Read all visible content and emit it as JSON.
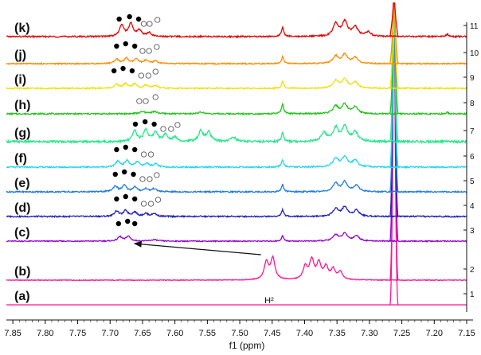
{
  "chart_data": {
    "type": "line",
    "xlabel": "f1 (ppm)",
    "x_reversed": true,
    "xlim": [
      7.86,
      7.15
    ],
    "x_ticks": [
      "7.85",
      "7.80",
      "7.75",
      "7.70",
      "7.65",
      "7.60",
      "7.55",
      "7.50",
      "7.45",
      "7.40",
      "7.35",
      "7.30",
      "7.25",
      "7.20",
      "7.15"
    ],
    "right_axis_ticks": [
      "1",
      "2",
      "3",
      "4",
      "5",
      "6",
      "7",
      "8",
      "9",
      "10",
      "11"
    ],
    "series": [
      {
        "name": "(a)",
        "index": "1",
        "color": "#ff1493",
        "peaks": [
          [
            7.262,
            1.0,
            0.004
          ]
        ],
        "baseline_noise": 0.02
      },
      {
        "name": "(b)",
        "index": "2",
        "color": "#ff1493",
        "peaks": [
          [
            7.262,
            1.0,
            0.004
          ],
          [
            7.459,
            0.45,
            0.004
          ],
          [
            7.449,
            0.55,
            0.004
          ],
          [
            7.399,
            0.33,
            0.004
          ],
          [
            7.389,
            0.5,
            0.004
          ],
          [
            7.378,
            0.42,
            0.004
          ],
          [
            7.367,
            0.32,
            0.004
          ],
          [
            7.356,
            0.26,
            0.004
          ],
          [
            7.345,
            0.2,
            0.004
          ]
        ],
        "baseline_noise": 0.02
      },
      {
        "name": "(c)",
        "index": "3",
        "color": "#9400d3",
        "peaks": [
          [
            7.262,
            1.0,
            0.005
          ],
          [
            7.685,
            0.25,
            0.004
          ],
          [
            7.672,
            0.28,
            0.004
          ],
          [
            7.632,
            0.08,
            0.006
          ],
          [
            7.352,
            0.35,
            0.005
          ],
          [
            7.338,
            0.42,
            0.005
          ],
          [
            7.32,
            0.3,
            0.005
          ],
          [
            7.434,
            0.3,
            0.002
          ]
        ],
        "baseline_noise": 0.06
      },
      {
        "name": "(d)",
        "index": "4",
        "color": "#1f1fbf",
        "peaks": [
          [
            7.262,
            1.0,
            0.005
          ],
          [
            7.69,
            0.28,
            0.004
          ],
          [
            7.676,
            0.3,
            0.004
          ],
          [
            7.662,
            0.22,
            0.004
          ],
          [
            7.645,
            0.15,
            0.004
          ],
          [
            7.632,
            0.15,
            0.004
          ],
          [
            7.352,
            0.4,
            0.005
          ],
          [
            7.338,
            0.48,
            0.005
          ],
          [
            7.32,
            0.32,
            0.005
          ],
          [
            7.434,
            0.35,
            0.002
          ]
        ],
        "baseline_noise": 0.07
      },
      {
        "name": "(e)",
        "index": "5",
        "color": "#1e7be0",
        "peaks": [
          [
            7.262,
            1.0,
            0.005
          ],
          [
            7.692,
            0.3,
            0.004
          ],
          [
            7.678,
            0.32,
            0.004
          ],
          [
            7.662,
            0.25,
            0.004
          ],
          [
            7.645,
            0.16,
            0.004
          ],
          [
            7.632,
            0.16,
            0.004
          ],
          [
            7.352,
            0.42,
            0.005
          ],
          [
            7.338,
            0.5,
            0.005
          ],
          [
            7.32,
            0.32,
            0.005
          ],
          [
            7.434,
            0.38,
            0.002
          ]
        ],
        "baseline_noise": 0.07
      },
      {
        "name": "(f)",
        "index": "6",
        "color": "#1fd6e8",
        "peaks": [
          [
            7.262,
            1.0,
            0.005
          ],
          [
            7.688,
            0.3,
            0.004
          ],
          [
            7.674,
            0.33,
            0.004
          ],
          [
            7.658,
            0.26,
            0.004
          ],
          [
            7.643,
            0.18,
            0.004
          ],
          [
            7.63,
            0.16,
            0.004
          ],
          [
            7.352,
            0.45,
            0.005
          ],
          [
            7.338,
            0.52,
            0.005
          ],
          [
            7.322,
            0.35,
            0.005
          ],
          [
            7.434,
            0.4,
            0.002
          ]
        ],
        "baseline_noise": 0.07
      },
      {
        "name": "(g)",
        "index": "7",
        "color": "#22e888",
        "peaks": [
          [
            7.262,
            1.0,
            0.005
          ],
          [
            7.662,
            0.45,
            0.004
          ],
          [
            7.645,
            0.5,
            0.004
          ],
          [
            7.63,
            0.4,
            0.004
          ],
          [
            7.615,
            0.28,
            0.004
          ],
          [
            7.6,
            0.2,
            0.004
          ],
          [
            7.56,
            0.45,
            0.004
          ],
          [
            7.548,
            0.4,
            0.004
          ],
          [
            7.51,
            0.18,
            0.005
          ],
          [
            7.37,
            0.35,
            0.005
          ],
          [
            7.352,
            0.55,
            0.005
          ],
          [
            7.338,
            0.6,
            0.005
          ],
          [
            7.322,
            0.4,
            0.005
          ],
          [
            7.434,
            0.4,
            0.002
          ]
        ],
        "baseline_noise": 0.09
      },
      {
        "name": "(h)",
        "index": "8",
        "color": "#22c41a",
        "peaks": [
          [
            7.262,
            1.0,
            0.005
          ],
          [
            7.65,
            0.1,
            0.006
          ],
          [
            7.632,
            0.12,
            0.006
          ],
          [
            7.56,
            0.08,
            0.006
          ],
          [
            7.352,
            0.42,
            0.005
          ],
          [
            7.338,
            0.52,
            0.005
          ],
          [
            7.322,
            0.38,
            0.005
          ],
          [
            7.434,
            0.55,
            0.002
          ],
          [
            7.18,
            0.08,
            0.002
          ]
        ],
        "baseline_noise": 0.08
      },
      {
        "name": "(i)",
        "index": "9",
        "color": "#f0e000",
        "peaks": [
          [
            7.262,
            1.0,
            0.005
          ],
          [
            7.69,
            0.22,
            0.004
          ],
          [
            7.676,
            0.26,
            0.004
          ],
          [
            7.662,
            0.24,
            0.004
          ],
          [
            7.645,
            0.18,
            0.004
          ],
          [
            7.63,
            0.16,
            0.004
          ],
          [
            7.352,
            0.42,
            0.005
          ],
          [
            7.338,
            0.5,
            0.005
          ],
          [
            7.322,
            0.35,
            0.005
          ],
          [
            7.434,
            0.4,
            0.002
          ]
        ],
        "baseline_noise": 0.07
      },
      {
        "name": "(j)",
        "index": "10",
        "color": "#ff8c00",
        "peaks": [
          [
            7.262,
            1.0,
            0.005
          ],
          [
            7.69,
            0.25,
            0.004
          ],
          [
            7.675,
            0.3,
            0.004
          ],
          [
            7.66,
            0.25,
            0.004
          ],
          [
            7.645,
            0.18,
            0.004
          ],
          [
            7.63,
            0.16,
            0.004
          ],
          [
            7.352,
            0.42,
            0.005
          ],
          [
            7.338,
            0.5,
            0.005
          ],
          [
            7.322,
            0.35,
            0.005
          ],
          [
            7.434,
            0.4,
            0.002
          ]
        ],
        "baseline_noise": 0.07
      },
      {
        "name": "(k)",
        "index": "11",
        "color": "#e60000",
        "peaks": [
          [
            7.262,
            1.0,
            0.005
          ],
          [
            7.682,
            0.55,
            0.004
          ],
          [
            7.668,
            0.6,
            0.004
          ],
          [
            7.655,
            0.3,
            0.004
          ],
          [
            7.64,
            0.18,
            0.004
          ],
          [
            7.352,
            0.6,
            0.005
          ],
          [
            7.338,
            0.7,
            0.005
          ],
          [
            7.322,
            0.45,
            0.005
          ],
          [
            7.302,
            0.2,
            0.005
          ],
          [
            7.434,
            0.45,
            0.002
          ],
          [
            7.18,
            0.12,
            0.002
          ]
        ],
        "baseline_noise": 0.07
      }
    ],
    "annotations": {
      "label": "H²",
      "arrow": {
        "from_x": 7.455,
        "to_x": 7.665
      },
      "markers": [
        {
          "series": "(c)",
          "filled": [
            7.687,
            7.673,
            7.662
          ],
          "open": []
        },
        {
          "series": "(d)",
          "filled": [
            7.69,
            7.676,
            7.662
          ],
          "open": [
            7.648,
            7.637,
            7.626
          ]
        },
        {
          "series": "(e)",
          "filled": [
            7.692,
            7.678,
            7.664
          ],
          "open": [
            7.65,
            7.639,
            7.628
          ]
        },
        {
          "series": "(f)",
          "filled": [
            7.69,
            7.676,
            7.662
          ],
          "open": [
            7.648,
            7.637
          ]
        },
        {
          "series": "(g)",
          "filled": [
            7.661,
            7.646,
            7.632
          ],
          "open": [
            7.618,
            7.606,
            7.596
          ]
        },
        {
          "series": "(h)",
          "filled": [],
          "open": [
            7.655,
            7.645,
            7.63
          ]
        },
        {
          "series": "(i)",
          "filled": [
            7.694,
            7.68,
            7.666
          ],
          "open": [
            7.652,
            7.641,
            7.63
          ]
        },
        {
          "series": "(j)",
          "filled": [
            7.69,
            7.676,
            7.662
          ],
          "open": [
            7.65,
            7.64,
            7.628
          ]
        },
        {
          "series": "(k)",
          "filled": [
            7.686,
            7.67,
            7.656
          ],
          "open": [
            7.648,
            7.639,
            7.627
          ]
        }
      ]
    }
  }
}
